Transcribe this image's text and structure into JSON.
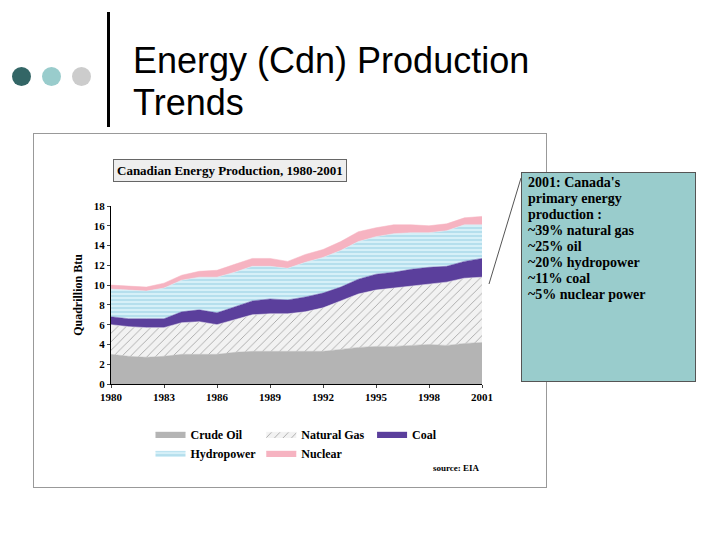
{
  "heading": "Energy (Cdn) Production Trends",
  "callout": {
    "lines": [
      "2001: Canada's",
      "primary energy",
      "production :",
      "~39% natural gas",
      "~25% oil",
      "~20% hydropower",
      "~11% coal",
      "~5% nuclear power"
    ]
  },
  "chart_data": {
    "type": "area",
    "stacked": true,
    "title": "Canadian Energy Production, 1980-2001",
    "y_label": "Quadrillion Btu",
    "source": "source: EIA",
    "x": [
      1980,
      1981,
      1982,
      1983,
      1984,
      1985,
      1986,
      1987,
      1988,
      1989,
      1990,
      1991,
      1992,
      1993,
      1994,
      1995,
      1996,
      1997,
      1998,
      1999,
      2000,
      2001
    ],
    "series": [
      {
        "name": "Crude Oil",
        "color": "#b4b4b4",
        "values": [
          3.0,
          2.8,
          2.7,
          2.8,
          3.0,
          3.0,
          3.0,
          3.2,
          3.3,
          3.3,
          3.3,
          3.3,
          3.3,
          3.5,
          3.7,
          3.8,
          3.8,
          3.9,
          4.0,
          3.9,
          4.1,
          4.2
        ]
      },
      {
        "name": "Natural Gas",
        "color": "#f2f2f2",
        "values": [
          3.0,
          3.0,
          3.0,
          2.9,
          3.2,
          3.3,
          3.0,
          3.3,
          3.7,
          3.8,
          3.8,
          4.0,
          4.4,
          4.9,
          5.4,
          5.7,
          5.9,
          6.0,
          6.1,
          6.4,
          6.6,
          6.6
        ]
      },
      {
        "name": "Coal",
        "color": "#5b3f9c",
        "values": [
          0.8,
          0.8,
          0.9,
          0.9,
          1.1,
          1.2,
          1.2,
          1.3,
          1.4,
          1.5,
          1.4,
          1.5,
          1.5,
          1.4,
          1.5,
          1.6,
          1.6,
          1.7,
          1.7,
          1.6,
          1.7,
          1.9
        ]
      },
      {
        "name": "Hydropower",
        "color": "#d6f0f8",
        "values": [
          2.8,
          2.9,
          2.8,
          3.1,
          3.2,
          3.3,
          3.6,
          3.5,
          3.5,
          3.3,
          3.2,
          3.5,
          3.6,
          3.7,
          3.8,
          3.8,
          3.9,
          3.7,
          3.5,
          3.6,
          3.7,
          3.4
        ]
      },
      {
        "name": "Nuclear",
        "color": "#f6b3c1",
        "values": [
          0.4,
          0.4,
          0.4,
          0.5,
          0.5,
          0.6,
          0.7,
          0.8,
          0.8,
          0.8,
          0.7,
          0.8,
          0.8,
          0.9,
          1.0,
          0.9,
          0.9,
          0.8,
          0.7,
          0.7,
          0.7,
          0.85
        ]
      }
    ],
    "xlim": [
      1980,
      2001
    ],
    "xticks": [
      1980,
      1983,
      1986,
      1989,
      1992,
      1995,
      1998,
      2001
    ],
    "ylim": [
      0,
      18
    ],
    "yticks": [
      0,
      2,
      4,
      6,
      8,
      10,
      12,
      14,
      16,
      18
    ],
    "grid": false,
    "legend": "bottom"
  }
}
